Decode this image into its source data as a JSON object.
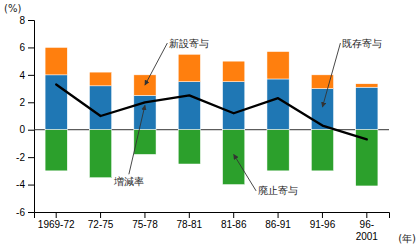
{
  "chart_data": {
    "type": "bar",
    "stacked": true,
    "grid": false,
    "categories": [
      "1969-72",
      "72-75",
      "75-78",
      "78-81",
      "81-86",
      "86-91",
      "91-96",
      "96-\n2001"
    ],
    "series": [
      {
        "name": "既存寄与",
        "values": [
          4.0,
          3.2,
          2.5,
          3.5,
          3.5,
          3.7,
          3.0,
          3.1
        ]
      },
      {
        "name": "新設寄与",
        "values": [
          2.0,
          1.0,
          1.5,
          2.0,
          1.5,
          2.0,
          1.0,
          0.25
        ]
      },
      {
        "name": "廃止寄与",
        "values": [
          -3.0,
          -3.5,
          -1.8,
          -2.5,
          -4.0,
          -3.0,
          -3.0,
          -4.1
        ]
      },
      {
        "name": "増減率",
        "type": "line",
        "color": "#000000",
        "values": [
          3.3,
          1.0,
          2.0,
          2.5,
          1.2,
          2.3,
          0.3,
          -0.7
        ]
      }
    ],
    "ylim": [
      -6,
      8
    ],
    "yticks": [
      -6,
      -4,
      -2,
      0,
      2,
      4,
      6,
      8
    ],
    "ylabel": "(%)",
    "xlabel": "(年)"
  }
}
